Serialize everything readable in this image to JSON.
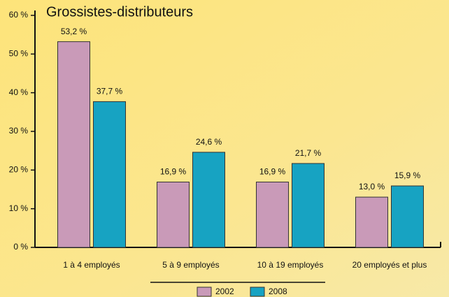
{
  "chart_data": {
    "type": "bar",
    "title": "Grossistes-distributeurs",
    "categories": [
      "1 à 4 employés",
      "5 à 9 employés",
      "10 à 19 employés",
      "20 employés et plus"
    ],
    "series": [
      {
        "name": "2002",
        "color": "#c99ab8",
        "values": [
          53.2,
          16.9,
          16.9,
          13.0
        ],
        "value_labels": [
          "53,2 %",
          "16,9 %",
          "16,9 %",
          "13,0 %"
        ]
      },
      {
        "name": "2008",
        "color": "#17a3c2",
        "values": [
          37.7,
          24.6,
          21.7,
          15.9
        ],
        "value_labels": [
          "37,7 %",
          "24,6 %",
          "21,7 %",
          "15,9 %"
        ]
      }
    ],
    "ylim": [
      0,
      60
    ],
    "yticks": [
      {
        "value": 0,
        "label": "0 %"
      },
      {
        "value": 10,
        "label": "10 %"
      },
      {
        "value": 20,
        "label": "20 %"
      },
      {
        "value": 30,
        "label": "30 %"
      },
      {
        "value": 40,
        "label": "40 %"
      },
      {
        "value": 50,
        "label": "50 %"
      },
      {
        "value": 60,
        "label": "60 %"
      }
    ]
  }
}
